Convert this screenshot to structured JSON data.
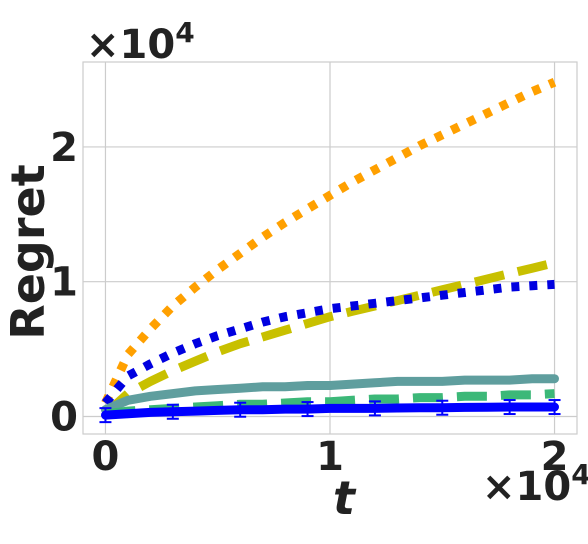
{
  "chart_data": {
    "type": "line",
    "title": "",
    "xlabel": "t",
    "ylabel": "Regret",
    "x_multiplier": "×10^4",
    "y_multiplier": "×10^4",
    "xlim": [
      -0.1,
      2.1
    ],
    "ylim": [
      -0.13,
      2.63
    ],
    "x_ticks": [
      0,
      1,
      2
    ],
    "y_ticks": [
      0,
      1,
      2
    ],
    "x_tick_labels": [
      "0",
      "1",
      "2"
    ],
    "y_tick_labels": [
      "0",
      "1",
      "2"
    ],
    "grid": true,
    "legend": "none",
    "x": [
      0,
      0.1,
      0.2,
      0.3,
      0.4,
      0.5,
      0.6,
      0.7,
      0.8,
      0.9,
      1.0,
      1.1,
      1.2,
      1.3,
      1.4,
      1.5,
      1.6,
      1.7,
      1.8,
      1.9,
      2.0
    ],
    "series": [
      {
        "color": "#ffa000",
        "dash": "dot",
        "values": [
          0.1,
          0.46,
          0.65,
          0.82,
          0.96,
          1.09,
          1.21,
          1.33,
          1.44,
          1.54,
          1.64,
          1.74,
          1.83,
          1.92,
          2.01,
          2.09,
          2.17,
          2.25,
          2.33,
          2.41,
          2.48
        ]
      },
      {
        "color": "#c8c000",
        "dash": "dash",
        "values": [
          0.02,
          0.17,
          0.26,
          0.34,
          0.41,
          0.48,
          0.54,
          0.59,
          0.64,
          0.69,
          0.74,
          0.78,
          0.82,
          0.86,
          0.9,
          0.94,
          0.98,
          1.02,
          1.06,
          1.1,
          1.14
        ]
      },
      {
        "color": "#0000e0",
        "dash": "dot",
        "values": [
          0.1,
          0.3,
          0.39,
          0.47,
          0.54,
          0.6,
          0.65,
          0.7,
          0.74,
          0.77,
          0.8,
          0.82,
          0.84,
          0.86,
          0.88,
          0.9,
          0.92,
          0.94,
          0.96,
          0.97,
          0.98
        ]
      },
      {
        "color": "#5f9e9e",
        "dash": "solid",
        "values": [
          0.05,
          0.12,
          0.15,
          0.17,
          0.19,
          0.2,
          0.21,
          0.22,
          0.22,
          0.23,
          0.23,
          0.24,
          0.25,
          0.26,
          0.26,
          0.26,
          0.27,
          0.27,
          0.27,
          0.28,
          0.28
        ]
      },
      {
        "color": "#3cb878",
        "dash": "dash",
        "values": [
          0.02,
          0.04,
          0.05,
          0.06,
          0.07,
          0.08,
          0.09,
          0.09,
          0.1,
          0.11,
          0.11,
          0.12,
          0.13,
          0.13,
          0.14,
          0.14,
          0.15,
          0.15,
          0.16,
          0.16,
          0.17
        ]
      },
      {
        "color": "#0000ff",
        "dash": "solid",
        "errorbars": true,
        "values": [
          0.01,
          0.02,
          0.03,
          0.035,
          0.04,
          0.045,
          0.05,
          0.05,
          0.055,
          0.055,
          0.06,
          0.06,
          0.06,
          0.063,
          0.065,
          0.065,
          0.067,
          0.068,
          0.07,
          0.07,
          0.07
        ]
      }
    ]
  }
}
